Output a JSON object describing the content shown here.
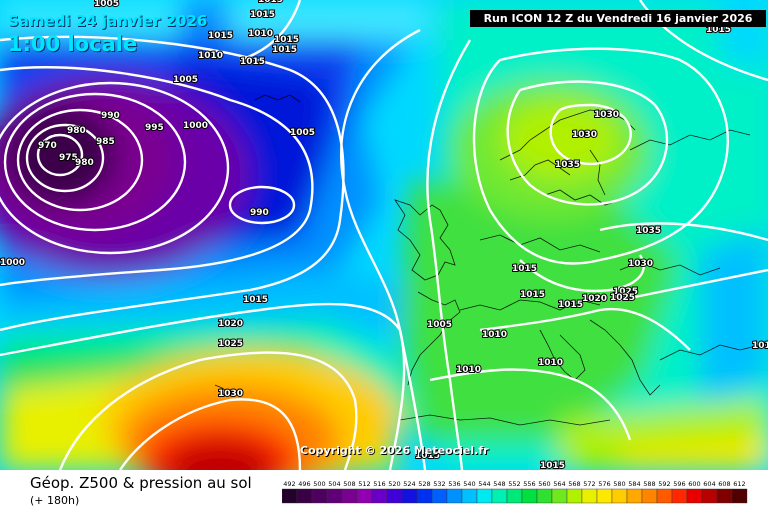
{
  "header": {
    "date_line1": "Samedi 24 janvier 2026",
    "date_line2": "1:00 locale",
    "run_info": "Run ICON 12 Z du Vendredi 16 janvier 2026"
  },
  "footer": {
    "title": "Géop. Z500 & pression au sol",
    "subtitle": "(+ 180h)",
    "copyright": "Copyright © 2026 Meteociel.fr"
  },
  "scale": {
    "values": [
      "492",
      "496",
      "500",
      "504",
      "508",
      "512",
      "516",
      "520",
      "524",
      "528",
      "532",
      "536",
      "540",
      "544",
      "548",
      "552",
      "556",
      "560",
      "564",
      "568",
      "572",
      "576",
      "580",
      "584",
      "588",
      "592",
      "596",
      "600",
      "604",
      "608",
      "612"
    ],
    "colors": [
      "#24002c",
      "#3a0046",
      "#4d0060",
      "#600078",
      "#7a0090",
      "#9000b0",
      "#6a00c8",
      "#4000d8",
      "#1410e0",
      "#0030f0",
      "#0060ff",
      "#0090ff",
      "#00c0ff",
      "#00e8f0",
      "#00f0b4",
      "#00e878",
      "#00e040",
      "#30e030",
      "#70e820",
      "#b0f000",
      "#e8f000",
      "#ffe800",
      "#ffcc00",
      "#ffa800",
      "#ff8400",
      "#ff5a00",
      "#ff2800",
      "#e80000",
      "#b80000",
      "#800000",
      "#500000"
    ]
  },
  "map_colors": {
    "deep_purple": "#2a0036",
    "purple": "#7a0090",
    "violet": "#3a00a0",
    "blue": "#0030e0",
    "mid_blue": "#0090ff",
    "cyan": "#30e8ff",
    "teal": "#00f0b4",
    "green": "#50e050",
    "lime": "#b0f000",
    "yellow": "#ffe800",
    "orange": "#ff8400",
    "red": "#e80000"
  },
  "isobars": [
    {
      "label": "1005",
      "id": "top-left-1"
    },
    {
      "label": "1015",
      "id": "top-1"
    },
    {
      "label": "1015",
      "id": "top-2"
    },
    {
      "label": "1015",
      "id": "top-3"
    },
    {
      "label": "1010",
      "id": "top-4"
    },
    {
      "label": "1010",
      "id": "top-5"
    },
    {
      "label": "1015",
      "id": "top-6"
    },
    {
      "label": "1015",
      "id": "top-7"
    },
    {
      "label": "1015",
      "id": "top-8"
    },
    {
      "label": "1005",
      "id": "left-1"
    },
    {
      "label": "990",
      "id": "low-1"
    },
    {
      "label": "995",
      "id": "low-2"
    },
    {
      "label": "1000",
      "id": "low-3"
    },
    {
      "label": "980",
      "id": "low-4"
    },
    {
      "label": "985",
      "id": "low-5"
    },
    {
      "label": "970",
      "id": "low-6"
    },
    {
      "label": "975",
      "id": "low-7"
    },
    {
      "label": "980",
      "id": "low-8"
    },
    {
      "label": "990",
      "id": "low-9"
    },
    {
      "label": "1005",
      "id": "mid-1"
    },
    {
      "label": "1000",
      "id": "edge-1"
    },
    {
      "label": "1015",
      "id": "atl-1"
    },
    {
      "label": "1020",
      "id": "atl-2"
    },
    {
      "label": "1025",
      "id": "atl-3"
    },
    {
      "label": "1030",
      "id": "atl-4"
    },
    {
      "label": "1030",
      "id": "scand-1"
    },
    {
      "label": "1030",
      "id": "scand-2"
    },
    {
      "label": "1035",
      "id": "scand-3"
    },
    {
      "label": "1035",
      "id": "east-1"
    },
    {
      "label": "1030",
      "id": "east-2"
    },
    {
      "label": "1025",
      "id": "east-3"
    },
    {
      "label": "1020",
      "id": "eu-1"
    },
    {
      "label": "1015",
      "id": "eu-2"
    },
    {
      "label": "1015",
      "id": "eu-3"
    },
    {
      "label": "1015",
      "id": "eu-4"
    },
    {
      "label": "1025",
      "id": "eu-5"
    },
    {
      "label": "1005",
      "id": "eu-6"
    },
    {
      "label": "1010",
      "id": "eu-7"
    },
    {
      "label": "1010",
      "id": "eu-8"
    },
    {
      "label": "1010",
      "id": "eu-9"
    },
    {
      "label": "1015",
      "id": "south-1"
    },
    {
      "label": "1015",
      "id": "south-2"
    },
    {
      "label": "1015",
      "id": "top-right-1"
    },
    {
      "label": "1015",
      "id": "right-1"
    }
  ]
}
